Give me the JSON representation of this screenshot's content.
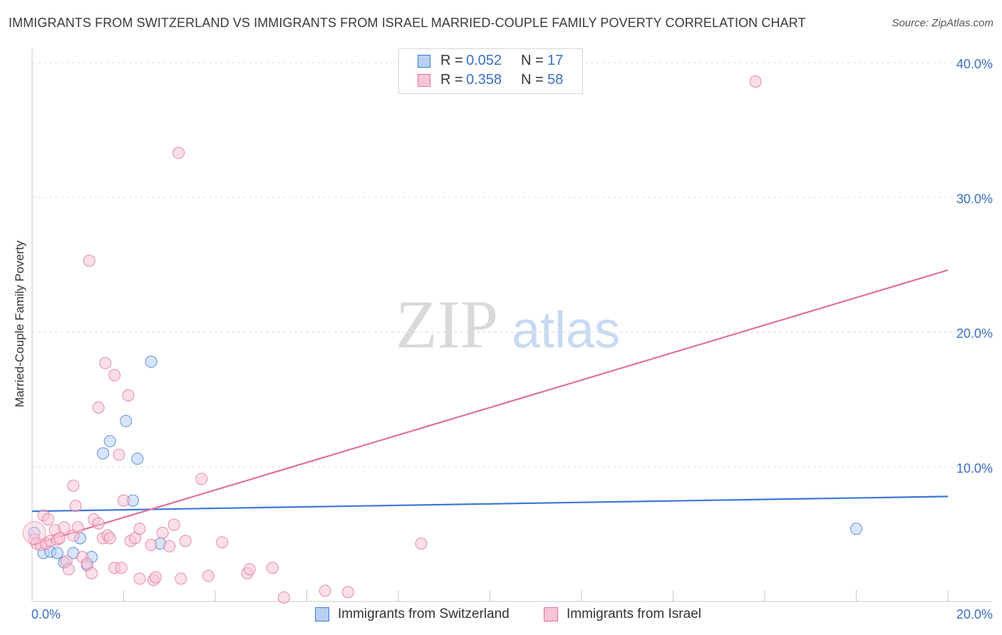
{
  "title": "IMMIGRANTS FROM SWITZERLAND VS IMMIGRANTS FROM ISRAEL MARRIED-COUPLE FAMILY POVERTY CORRELATION CHART",
  "source": "Source: ZipAtlas.com",
  "watermark": {
    "zip": "ZIP",
    "atlas": "atlas"
  },
  "colors": {
    "blue": "#3b78d8",
    "blue_fill": "#b7d0f4",
    "pink": "#e0709a",
    "pink_fill": "#f8c5d6",
    "axis_text": "#3b6fc6",
    "grid": "#dddddd"
  },
  "legend": {
    "r_label": "R =",
    "n_label": "N =",
    "series": [
      {
        "name": "Immigrants from Switzerland",
        "r": "0.052",
        "n": "17"
      },
      {
        "name": "Immigrants from Israel",
        "r": "0.358",
        "n": "58"
      }
    ]
  },
  "chart_data": {
    "type": "scatter",
    "title": "IMMIGRANTS FROM SWITZERLAND VS IMMIGRANTS FROM ISRAEL MARRIED-COUPLE FAMILY POVERTY CORRELATION CHART",
    "xlabel": "",
    "ylabel": "Married-Couple Family Poverty",
    "xlim": [
      0,
      20
    ],
    "ylim": [
      0,
      40
    ],
    "x_tick_labels": [
      "0.0%",
      "20.0%"
    ],
    "y_ticks": [
      10,
      20,
      30,
      40
    ],
    "y_tick_labels": [
      "10.0%",
      "20.0%",
      "30.0%",
      "40.0%"
    ],
    "grid": true,
    "legend_position": "top-center and bottom",
    "series": [
      {
        "name": "Immigrants from Switzerland",
        "color": "#3b78d8",
        "trend": {
          "x": [
            0,
            20
          ],
          "y": [
            6.7,
            7.8
          ]
        },
        "points": [
          [
            0.05,
            5.1
          ],
          [
            0.25,
            3.6
          ],
          [
            0.4,
            3.7
          ],
          [
            0.55,
            3.6
          ],
          [
            0.7,
            2.9
          ],
          [
            0.9,
            3.6
          ],
          [
            1.05,
            4.7
          ],
          [
            1.2,
            2.7
          ],
          [
            1.3,
            3.3
          ],
          [
            1.55,
            11.0
          ],
          [
            1.7,
            11.9
          ],
          [
            2.05,
            13.4
          ],
          [
            2.2,
            7.5
          ],
          [
            2.3,
            10.6
          ],
          [
            2.6,
            17.8
          ],
          [
            2.8,
            4.3
          ],
          [
            18.0,
            5.4
          ]
        ]
      },
      {
        "name": "Immigrants from Israel",
        "color": "#e0709a",
        "trend": {
          "x": [
            0,
            20
          ],
          "y": [
            4.2,
            24.6
          ]
        },
        "points": [
          [
            0.05,
            4.6
          ],
          [
            0.1,
            4.3
          ],
          [
            0.2,
            4.2
          ],
          [
            0.25,
            6.4
          ],
          [
            0.3,
            4.3
          ],
          [
            0.35,
            6.1
          ],
          [
            0.4,
            4.5
          ],
          [
            0.5,
            5.3
          ],
          [
            0.55,
            4.6
          ],
          [
            0.6,
            4.7
          ],
          [
            0.7,
            5.5
          ],
          [
            0.75,
            3.0
          ],
          [
            0.8,
            2.4
          ],
          [
            0.9,
            4.9
          ],
          [
            0.9,
            8.6
          ],
          [
            0.95,
            7.1
          ],
          [
            1.0,
            5.5
          ],
          [
            1.1,
            3.3
          ],
          [
            1.2,
            2.8
          ],
          [
            1.3,
            2.1
          ],
          [
            1.25,
            25.3
          ],
          [
            1.35,
            6.1
          ],
          [
            1.45,
            14.4
          ],
          [
            1.45,
            5.8
          ],
          [
            1.55,
            4.7
          ],
          [
            1.6,
            17.7
          ],
          [
            1.65,
            4.9
          ],
          [
            1.7,
            4.7
          ],
          [
            1.8,
            16.8
          ],
          [
            1.8,
            2.5
          ],
          [
            1.9,
            10.9
          ],
          [
            1.95,
            2.5
          ],
          [
            2.0,
            7.5
          ],
          [
            2.1,
            15.3
          ],
          [
            2.15,
            4.5
          ],
          [
            2.25,
            4.7
          ],
          [
            2.35,
            5.4
          ],
          [
            2.35,
            1.7
          ],
          [
            2.6,
            4.2
          ],
          [
            2.65,
            1.6
          ],
          [
            2.7,
            1.8
          ],
          [
            2.85,
            5.1
          ],
          [
            3.0,
            4.1
          ],
          [
            3.1,
            5.7
          ],
          [
            3.2,
            33.3
          ],
          [
            3.25,
            1.7
          ],
          [
            3.35,
            4.5
          ],
          [
            3.7,
            9.1
          ],
          [
            3.85,
            1.9
          ],
          [
            4.15,
            4.4
          ],
          [
            4.7,
            2.1
          ],
          [
            4.75,
            2.4
          ],
          [
            5.25,
            2.5
          ],
          [
            5.5,
            0.3
          ],
          [
            6.4,
            0.8
          ],
          [
            6.9,
            0.7
          ],
          [
            8.5,
            4.3
          ],
          [
            15.8,
            38.6
          ]
        ]
      }
    ]
  }
}
